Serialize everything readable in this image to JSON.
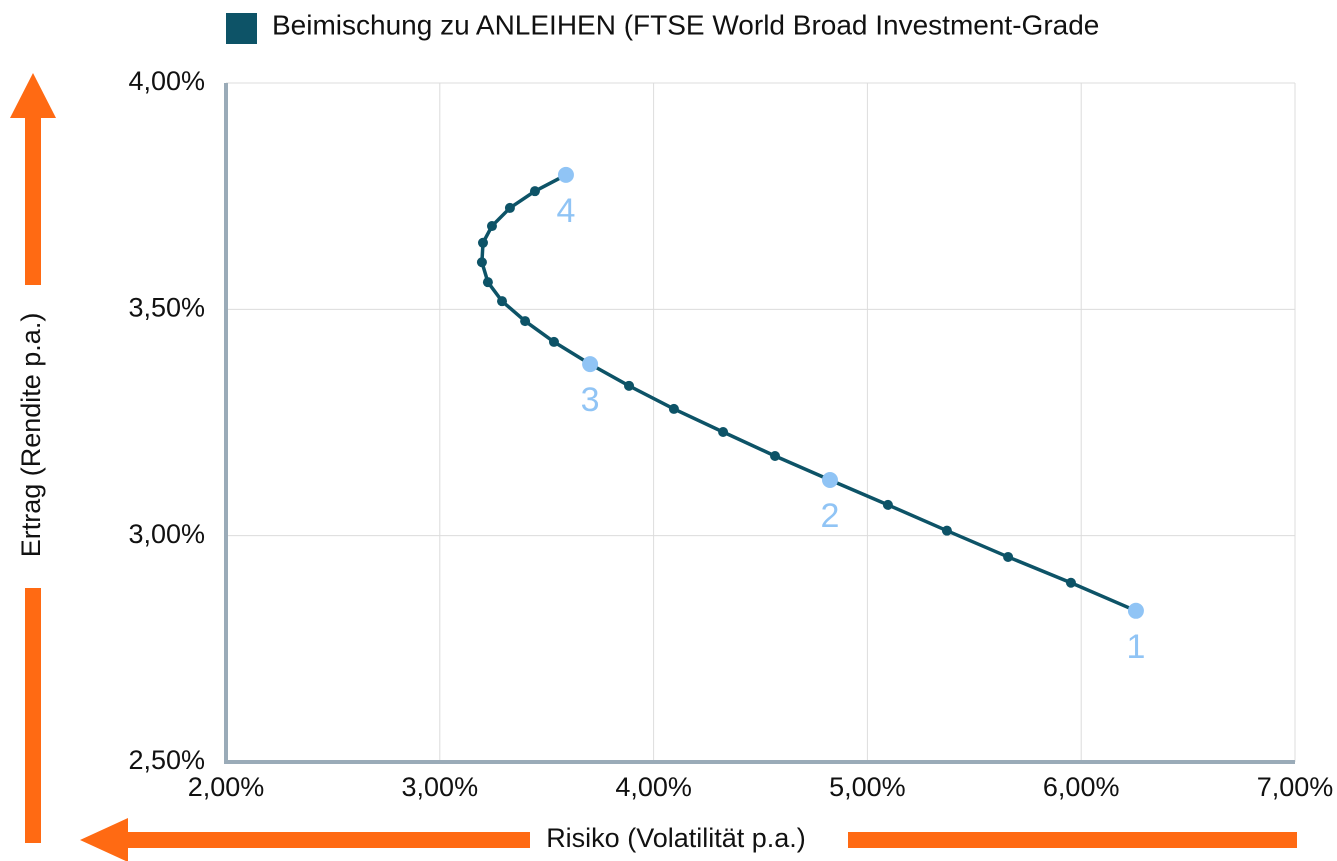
{
  "chart_data": {
    "type": "line",
    "xlabel": "Risiko (Volatilität p.a.)",
    "ylabel": "Ertrag (Rendite p.a.)",
    "xlim": [
      2.0,
      7.0
    ],
    "ylim": [
      2.5,
      4.0
    ],
    "xticks": [
      {
        "value": 2.0,
        "label": "2,00%"
      },
      {
        "value": 3.0,
        "label": "3,00%"
      },
      {
        "value": 4.0,
        "label": "4,00%"
      },
      {
        "value": 5.0,
        "label": "5,00%"
      },
      {
        "value": 6.0,
        "label": "6,00%"
      },
      {
        "value": 7.0,
        "label": "7,00%"
      }
    ],
    "yticks": [
      {
        "value": 2.5,
        "label": "2,50%"
      },
      {
        "value": 3.0,
        "label": "3,00%"
      },
      {
        "value": 3.5,
        "label": "3,50%"
      },
      {
        "value": 4.0,
        "label": "4,00%"
      }
    ],
    "grid": true,
    "legend": "top",
    "highlight_color": "#90c4f5",
    "x": [
      6.256,
      5.952,
      5.658,
      5.372,
      5.096,
      4.825,
      4.568,
      4.325,
      4.095,
      3.885,
      3.703,
      3.534,
      3.399,
      3.291,
      3.225,
      3.197,
      3.202,
      3.244,
      3.328,
      3.445,
      3.59
    ],
    "series": [
      {
        "name": "Beimischung zu ANLEIHEN (FTSE World Broad Investment-Grade",
        "color": "#0d5367",
        "values": [
          2.834,
          2.896,
          2.953,
          3.011,
          3.068,
          3.123,
          3.176,
          3.229,
          3.28,
          3.331,
          3.379,
          3.428,
          3.474,
          3.518,
          3.56,
          3.604,
          3.647,
          3.684,
          3.724,
          3.761,
          3.797
        ]
      }
    ],
    "point_labels": [
      "1",
      null,
      null,
      null,
      null,
      "2",
      null,
      null,
      null,
      null,
      "3",
      null,
      null,
      null,
      null,
      null,
      null,
      null,
      null,
      null,
      "4"
    ]
  }
}
